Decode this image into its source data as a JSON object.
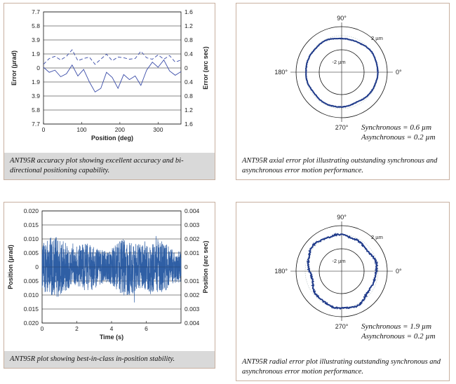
{
  "chart_data": [
    {
      "type": "line",
      "xlabel": "Position (deg)",
      "ylabel_left": "Error (μrad)",
      "ylabel_right": "Error (arc sec)",
      "x_ticks": [
        "0",
        "100",
        "200",
        "300"
      ],
      "y_ticks_left": [
        "7.7",
        "5.8",
        "3.9",
        "1.9",
        "0",
        "1.9",
        "3.9",
        "5.8",
        "7.7"
      ],
      "y_ticks_right": [
        "1.6",
        "1.2",
        "0.8",
        "0.4",
        "0",
        "0.4",
        "0.8",
        "1.2",
        "1.6"
      ],
      "xlim": [
        0,
        360
      ],
      "ylim": [
        -7.7,
        7.7
      ],
      "grid": "horizontal",
      "series": [
        {
          "style": "dashed",
          "x": [
            0,
            15,
            30,
            45,
            60,
            75,
            90,
            105,
            120,
            135,
            150,
            165,
            180,
            195,
            210,
            225,
            240,
            255,
            270,
            285,
            300,
            315,
            330,
            345,
            360
          ],
          "values": [
            0.5,
            1.3,
            1.6,
            1.1,
            1.6,
            2.5,
            1.0,
            1.3,
            1.5,
            0.5,
            1.2,
            1.9,
            1.0,
            1.5,
            1.4,
            1.2,
            1.3,
            2.3,
            1.4,
            1.2,
            1.8,
            1.2,
            1.7,
            0.8,
            1.1
          ]
        },
        {
          "style": "solid",
          "x": [
            0,
            15,
            30,
            45,
            60,
            75,
            90,
            105,
            120,
            135,
            150,
            165,
            180,
            195,
            210,
            225,
            240,
            255,
            270,
            285,
            300,
            315,
            330,
            345,
            360
          ],
          "values": [
            0.1,
            -0.6,
            -0.3,
            -1.2,
            -0.8,
            0.4,
            -1.1,
            -0.2,
            -1.9,
            -3.3,
            -2.8,
            -0.6,
            -1.3,
            -2.8,
            -0.9,
            -1.6,
            -1.1,
            -2.4,
            -0.3,
            0.8,
            0.1,
            1.1,
            -0.4,
            -1.0,
            -0.5
          ]
        }
      ]
    },
    {
      "type": "polar",
      "angle_labels": [
        "90°",
        "180°",
        "270°",
        "0°"
      ],
      "ring_labels": [
        "2 µm",
        "-2 µm"
      ],
      "synchronous_um": 0.6,
      "asynchronous_um": 0.2
    },
    {
      "type": "line",
      "xlabel": "Time (s)",
      "ylabel_left": "Position (μrad)",
      "ylabel_right": "Position (arc sec)",
      "x_ticks": [
        "0",
        "2",
        "4",
        "6"
      ],
      "y_ticks_left": [
        "0.020",
        "0.015",
        "0.010",
        "0.005",
        "0",
        "0.005",
        "0.010",
        "0.015",
        "0.020"
      ],
      "y_ticks_right": [
        "0.004",
        "0.003",
        "0.002",
        "0.001",
        "0",
        "0.001",
        "0.002",
        "0.003",
        "0.004"
      ],
      "xlim": [
        0,
        8
      ],
      "ylim": [
        -0.02,
        0.02
      ],
      "grid": "horizontal",
      "noise_amplitude": 0.011,
      "samples": 1400
    },
    {
      "type": "polar",
      "angle_labels": [
        "90°",
        "180°",
        "270°",
        "0°"
      ],
      "ring_labels": [
        "2 µm",
        "-2 µm"
      ],
      "synchronous_um": 1.9,
      "asynchronous_um": 0.2
    }
  ],
  "captions": {
    "accuracy": "ANT95R accuracy plot showing excellent accuracy and bi-directional positioning capability.",
    "axial": "ANT95R axial error plot illustrating outstanding synchronous and asynchronous error motion performance.",
    "stability": "ANT95R plot showing best-in-class in-position stability.",
    "radial": "ANT95R radial error plot illustrating outstanding synchronous and asynchronous error motion performance."
  },
  "stats_text": {
    "axial_sync": "Synchronous = 0.6 µm",
    "axial_async": "Asynchronous = 0.2 µm",
    "radial_sync": "Synchronous = 1.9 µm",
    "radial_async": "Asynchronous = 0.2 µm"
  },
  "colors": {
    "series_line": "#3a4ca8",
    "noise": "#2f5fa5",
    "polar_trace": "#1f3a8a",
    "caption_bg": "#d9d9d9",
    "border": "#c8b0a0"
  }
}
